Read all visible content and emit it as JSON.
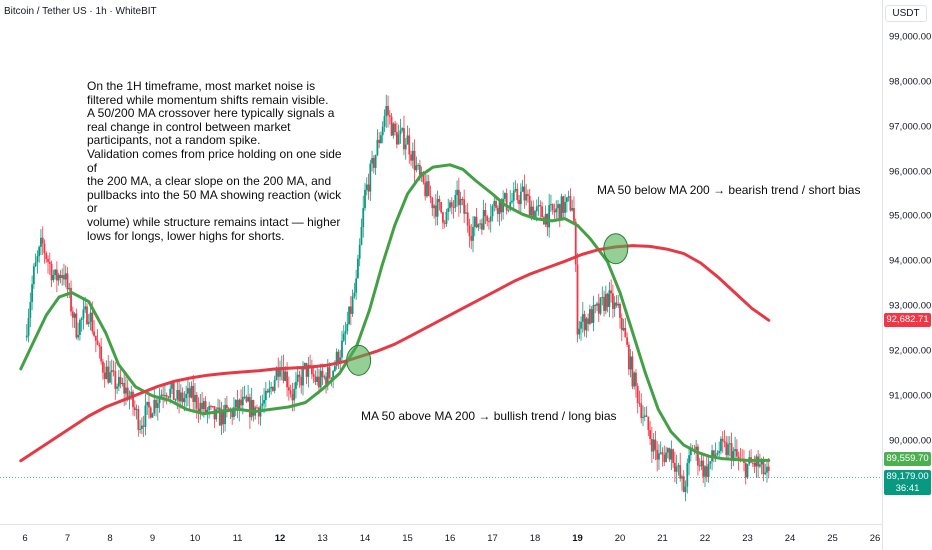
{
  "header": {
    "title": "Bitcoin / Tether US · 1h · WhiteBIT",
    "currency": "USDT"
  },
  "annotations": {
    "note": "On the 1H timeframe, most market noise is\nfiltered while momentum shifts remain visible.\nA 50/200 MA crossover here typically signals a\nreal change in control between market\nparticipants, not a random spike.\nValidation comes from price holding on one side of\nthe 200 MA, a clear slope on the 200 MA, and\npullbacks into the 50 MA showing reaction (wick or\nvolume) while structure remains intact — higher\nlows for longs, lower highs for shorts.",
    "bullish": "MA 50 above MA 200 → bullish trend / long bias",
    "bearish": "MA 50 below MA 200 → bearish trend / short bias"
  },
  "price_labels": {
    "ma200": "92,682.71",
    "ma50": "89,559.70",
    "last_price": "89,179.00",
    "countdown": "36:41"
  },
  "colors": {
    "up": "#089981",
    "down": "#f23645",
    "ma50": "#43a047",
    "ma200": "#e53946",
    "marker": "#4caf50"
  },
  "chart_data": {
    "type": "candlestick",
    "x_ticks": [
      {
        "label": "6",
        "bold": false
      },
      {
        "label": "7",
        "bold": false
      },
      {
        "label": "8",
        "bold": false
      },
      {
        "label": "9",
        "bold": false
      },
      {
        "label": "10",
        "bold": false
      },
      {
        "label": "11",
        "bold": false
      },
      {
        "label": "12",
        "bold": true
      },
      {
        "label": "13",
        "bold": false
      },
      {
        "label": "14",
        "bold": false
      },
      {
        "label": "15",
        "bold": false
      },
      {
        "label": "16",
        "bold": false
      },
      {
        "label": "17",
        "bold": false
      },
      {
        "label": "18",
        "bold": false
      },
      {
        "label": "19",
        "bold": true
      },
      {
        "label": "20",
        "bold": false
      },
      {
        "label": "21",
        "bold": false
      },
      {
        "label": "22",
        "bold": false
      },
      {
        "label": "23",
        "bold": false
      },
      {
        "label": "24",
        "bold": false
      },
      {
        "label": "25",
        "bold": false
      },
      {
        "label": "26",
        "bold": false
      }
    ],
    "y_ticks": [
      "99,000.00",
      "98,000.00",
      "97,000.00",
      "96,000.00",
      "95,000.00",
      "94,000.00",
      "93,000.00",
      "92,000.00",
      "91,000.00",
      "90,000.00"
    ],
    "ylim": [
      88800,
      99400
    ],
    "close_path": [
      [
        6.0,
        92300
      ],
      [
        6.2,
        93700
      ],
      [
        6.4,
        94400
      ],
      [
        6.7,
        93600
      ],
      [
        6.9,
        93800
      ],
      [
        7.2,
        92500
      ],
      [
        7.5,
        92900
      ],
      [
        7.8,
        91700
      ],
      [
        8.1,
        91300
      ],
      [
        8.4,
        91100
      ],
      [
        8.7,
        90400
      ],
      [
        9.0,
        90800
      ],
      [
        9.3,
        91200
      ],
      [
        9.6,
        90900
      ],
      [
        9.9,
        91000
      ],
      [
        10.2,
        90700
      ],
      [
        10.5,
        90500
      ],
      [
        10.8,
        90600
      ],
      [
        11.1,
        90800
      ],
      [
        11.4,
        90700
      ],
      [
        11.7,
        90900
      ],
      [
        12.0,
        91800
      ],
      [
        12.3,
        91000
      ],
      [
        12.6,
        91600
      ],
      [
        12.9,
        91300
      ],
      [
        13.2,
        91500
      ],
      [
        13.5,
        92200
      ],
      [
        13.8,
        93500
      ],
      [
        14.0,
        95500
      ],
      [
        14.2,
        96200
      ],
      [
        14.5,
        97400
      ],
      [
        14.7,
        96800
      ],
      [
        15.0,
        96700
      ],
      [
        15.3,
        95800
      ],
      [
        15.6,
        95300
      ],
      [
        15.9,
        95000
      ],
      [
        16.2,
        95400
      ],
      [
        16.5,
        94700
      ],
      [
        16.8,
        95000
      ],
      [
        17.1,
        95300
      ],
      [
        17.4,
        95300
      ],
      [
        17.7,
        95500
      ],
      [
        18.0,
        95100
      ],
      [
        18.3,
        95000
      ],
      [
        18.6,
        95200
      ],
      [
        18.9,
        95300
      ],
      [
        19.0,
        92600
      ],
      [
        19.2,
        92700
      ],
      [
        19.5,
        92900
      ],
      [
        19.7,
        93200
      ],
      [
        20.0,
        92800
      ],
      [
        20.3,
        91400
      ],
      [
        20.6,
        90400
      ],
      [
        20.9,
        89600
      ],
      [
        21.2,
        89800
      ],
      [
        21.5,
        88900
      ],
      [
        21.7,
        89900
      ],
      [
        22.0,
        89300
      ],
      [
        22.3,
        89800
      ],
      [
        22.6,
        89800
      ],
      [
        22.9,
        89400
      ],
      [
        23.2,
        89500
      ],
      [
        23.5,
        89179
      ]
    ],
    "series": [
      {
        "name": "MA 50",
        "type": "line",
        "points": [
          [
            5.9,
            91600
          ],
          [
            6.2,
            92200
          ],
          [
            6.5,
            92800
          ],
          [
            6.8,
            93200
          ],
          [
            7.1,
            93300
          ],
          [
            7.5,
            93100
          ],
          [
            7.9,
            92400
          ],
          [
            8.2,
            91700
          ],
          [
            8.6,
            91200
          ],
          [
            9.0,
            91000
          ],
          [
            9.4,
            90900
          ],
          [
            9.8,
            90700
          ],
          [
            10.2,
            90600
          ],
          [
            10.6,
            90650
          ],
          [
            11.0,
            90700
          ],
          [
            11.4,
            90650
          ],
          [
            11.8,
            90700
          ],
          [
            12.2,
            90750
          ],
          [
            12.6,
            90850
          ],
          [
            13.0,
            91150
          ],
          [
            13.4,
            91500
          ],
          [
            13.8,
            92100
          ],
          [
            14.1,
            92900
          ],
          [
            14.4,
            93900
          ],
          [
            14.7,
            94800
          ],
          [
            15.0,
            95500
          ],
          [
            15.3,
            95900
          ],
          [
            15.6,
            96100
          ],
          [
            16.0,
            96150
          ],
          [
            16.3,
            96050
          ],
          [
            16.6,
            95800
          ],
          [
            17.0,
            95500
          ],
          [
            17.3,
            95250
          ],
          [
            17.7,
            95050
          ],
          [
            18.0,
            94950
          ],
          [
            18.4,
            94900
          ],
          [
            18.7,
            94950
          ],
          [
            19.0,
            94800
          ],
          [
            19.3,
            94500
          ],
          [
            19.7,
            94000
          ],
          [
            20.0,
            93300
          ],
          [
            20.3,
            92400
          ],
          [
            20.6,
            91500
          ],
          [
            20.9,
            90700
          ],
          [
            21.2,
            90200
          ],
          [
            21.5,
            89900
          ],
          [
            21.8,
            89750
          ],
          [
            22.1,
            89650
          ],
          [
            22.4,
            89600
          ],
          [
            22.7,
            89580
          ],
          [
            23.0,
            89560
          ],
          [
            23.5,
            89559.7
          ]
        ]
      },
      {
        "name": "MA 200",
        "type": "line",
        "points": [
          [
            5.9,
            89550
          ],
          [
            6.3,
            89800
          ],
          [
            6.7,
            90050
          ],
          [
            7.1,
            90300
          ],
          [
            7.5,
            90550
          ],
          [
            7.9,
            90750
          ],
          [
            8.3,
            90900
          ],
          [
            8.7,
            91050
          ],
          [
            9.1,
            91200
          ],
          [
            9.5,
            91320
          ],
          [
            9.9,
            91400
          ],
          [
            10.3,
            91460
          ],
          [
            10.7,
            91500
          ],
          [
            11.1,
            91530
          ],
          [
            11.5,
            91560
          ],
          [
            11.9,
            91600
          ],
          [
            12.3,
            91620
          ],
          [
            12.7,
            91640
          ],
          [
            13.1,
            91680
          ],
          [
            13.5,
            91760
          ],
          [
            13.9,
            91880
          ],
          [
            14.3,
            92000
          ],
          [
            14.7,
            92150
          ],
          [
            15.1,
            92350
          ],
          [
            15.5,
            92550
          ],
          [
            15.9,
            92750
          ],
          [
            16.3,
            92950
          ],
          [
            16.7,
            93150
          ],
          [
            17.1,
            93350
          ],
          [
            17.5,
            93550
          ],
          [
            17.9,
            93720
          ],
          [
            18.3,
            93860
          ],
          [
            18.7,
            94000
          ],
          [
            19.1,
            94150
          ],
          [
            19.5,
            94260
          ],
          [
            19.9,
            94320
          ],
          [
            20.3,
            94350
          ],
          [
            20.7,
            94330
          ],
          [
            21.1,
            94270
          ],
          [
            21.5,
            94170
          ],
          [
            21.9,
            93960
          ],
          [
            22.3,
            93650
          ],
          [
            22.7,
            93300
          ],
          [
            23.1,
            92950
          ],
          [
            23.5,
            92682.71
          ]
        ]
      }
    ],
    "crossovers": [
      {
        "x": 13.85,
        "y": 91790,
        "type": "bullish"
      },
      {
        "x": 19.9,
        "y": 94280,
        "type": "bearish"
      }
    ]
  }
}
